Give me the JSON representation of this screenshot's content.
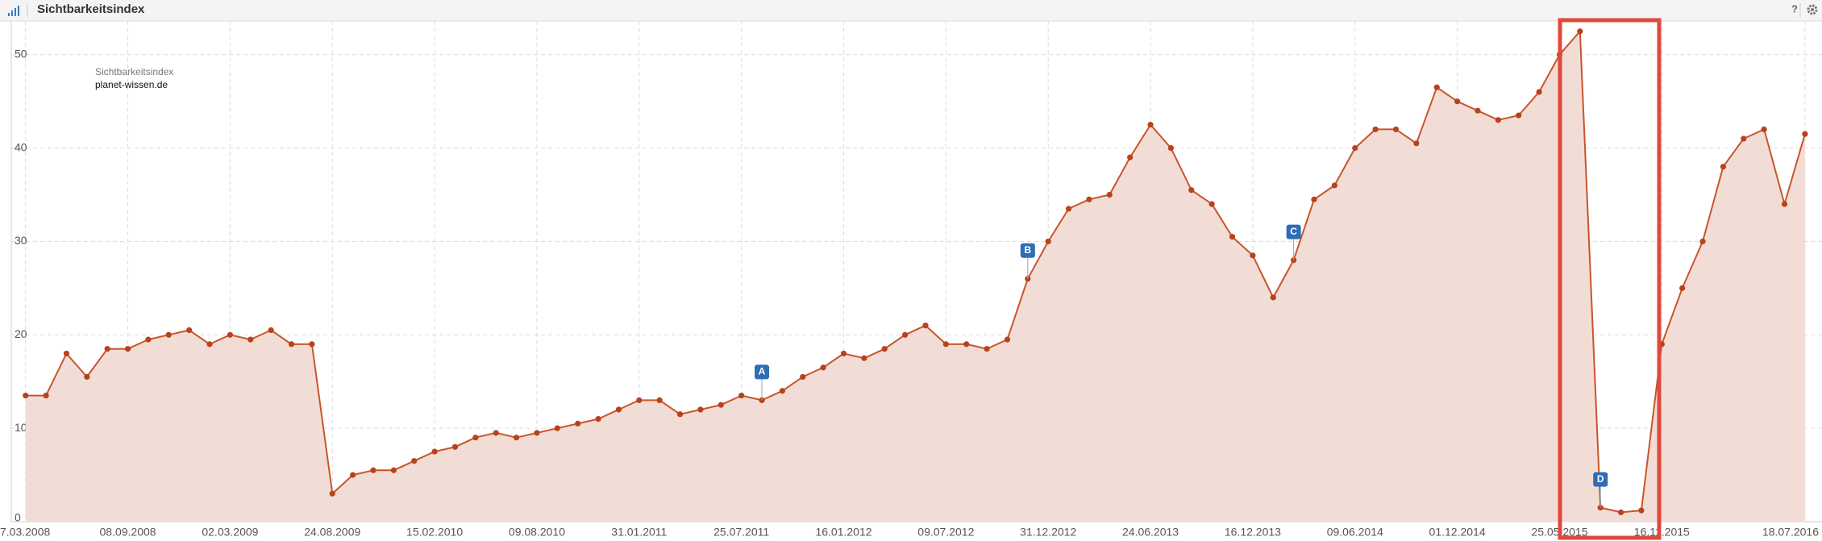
{
  "chart_data": {
    "type": "line",
    "title": "Sichtbarkeitsindex",
    "help": "?",
    "legend_title": "Sichtbarkeitsindex",
    "categories": [
      "7.03.2008",
      null,
      null,
      null,
      null,
      "08.09.2008",
      null,
      null,
      null,
      null,
      "02.03.2009",
      null,
      null,
      null,
      null,
      "24.08.2009",
      null,
      null,
      null,
      null,
      "15.02.2010",
      null,
      null,
      null,
      null,
      "09.08.2010",
      null,
      null,
      null,
      null,
      "31.01.2011",
      null,
      null,
      null,
      null,
      "25.07.2011",
      null,
      null,
      null,
      null,
      "16.01.2012",
      null,
      null,
      null,
      null,
      "09.07.2012",
      null,
      null,
      null,
      null,
      "31.12.2012",
      null,
      null,
      null,
      null,
      "24.06.2013",
      null,
      null,
      null,
      null,
      "16.12.2013",
      null,
      null,
      null,
      null,
      "09.06.2014",
      null,
      null,
      null,
      null,
      "01.12.2014",
      null,
      null,
      null,
      null,
      "25.05.2015",
      null,
      null,
      null,
      null,
      "16.11.2015",
      null,
      null,
      null,
      null,
      null,
      null,
      "18.07.2016"
    ],
    "series": [
      {
        "name": "planet-wissen.de",
        "color": "#c8552b",
        "fill": "#f2ddd6",
        "values": [
          13.5,
          13.5,
          18,
          15.5,
          18.5,
          18.5,
          19.5,
          20,
          20.5,
          19,
          20,
          19.5,
          20.5,
          19,
          19,
          3,
          5,
          5.5,
          5.5,
          6.5,
          7.5,
          8,
          9,
          9.5,
          9,
          9.5,
          10,
          10.5,
          11,
          12,
          13,
          13,
          11.5,
          12,
          12.5,
          13.5,
          13,
          14,
          15.5,
          16.5,
          18,
          17.5,
          18.5,
          20,
          21,
          19,
          19,
          18.5,
          19.5,
          26,
          30,
          33.5,
          34.5,
          35,
          39,
          42.5,
          40,
          35.5,
          34,
          30.5,
          28.5,
          24,
          28,
          34.5,
          36,
          40,
          42,
          42,
          40.5,
          46.5,
          45,
          44,
          43,
          43.5,
          46,
          50,
          52.5,
          1.5,
          1,
          1.2,
          19,
          25,
          30,
          38,
          41,
          42,
          34,
          41.5
        ]
      }
    ],
    "events": [
      null,
      null,
      null,
      null,
      null,
      null,
      null,
      null,
      null,
      null,
      null,
      null,
      null,
      null,
      null,
      null,
      null,
      null,
      null,
      null,
      null,
      null,
      null,
      null,
      null,
      null,
      null,
      null,
      null,
      null,
      null,
      null,
      null,
      null,
      null,
      null,
      "A",
      null,
      null,
      null,
      null,
      null,
      null,
      null,
      null,
      null,
      null,
      null,
      null,
      "B",
      null,
      null,
      null,
      null,
      null,
      null,
      null,
      null,
      null,
      null,
      null,
      null,
      "C",
      null,
      null,
      null,
      null,
      null,
      null,
      null,
      null,
      null,
      null,
      null,
      null,
      null,
      null,
      "D",
      null,
      null,
      null,
      null,
      null,
      null,
      null,
      null,
      null,
      null
    ],
    "ylim": [
      0,
      53
    ],
    "yticks": [
      0,
      10,
      20,
      30,
      40,
      50
    ],
    "grid": true
  }
}
